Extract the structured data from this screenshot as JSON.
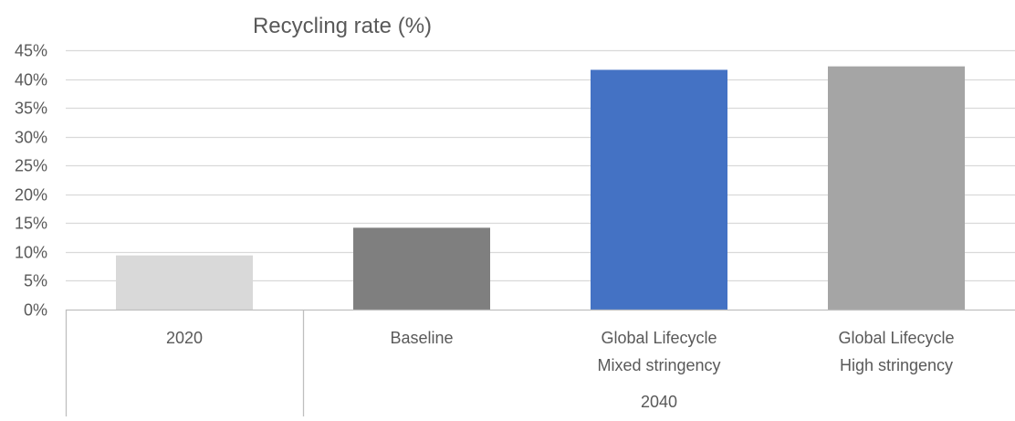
{
  "chart_data": {
    "type": "bar",
    "title": "Recycling rate (%)",
    "categories": [
      {
        "lines": [
          "2020"
        ],
        "group": ""
      },
      {
        "lines": [
          "Baseline"
        ],
        "group": "2040"
      },
      {
        "lines": [
          "Global Lifecycle",
          "Mixed stringency"
        ],
        "group": "2040"
      },
      {
        "lines": [
          "Global Lifecycle",
          "High stringency"
        ],
        "group": "2040"
      }
    ],
    "values": [
      9.4,
      14.2,
      41.6,
      42.2
    ],
    "bar_colors": [
      "#D9D9D9",
      "#7F7F7F",
      "#4472C4",
      "#A5A5A5"
    ],
    "group_labels": [
      "2040"
    ],
    "ylim": [
      0,
      45
    ],
    "y_ticks": [
      0,
      5,
      10,
      15,
      20,
      25,
      30,
      35,
      40,
      45
    ],
    "y_tick_labels": [
      "0%",
      "5%",
      "10%",
      "15%",
      "20%",
      "25%",
      "30%",
      "35%",
      "40%",
      "45%"
    ],
    "grid": true,
    "gridline_color": "#D9D9D9",
    "axis_color": "#BFBFBF",
    "text_color": "#595959"
  }
}
